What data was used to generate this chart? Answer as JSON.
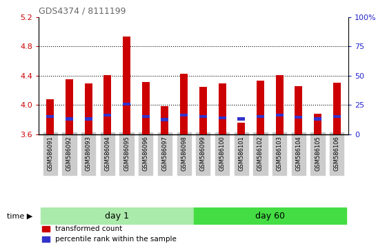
{
  "title": "GDS4374 / 8111199",
  "samples": [
    "GSM586091",
    "GSM586092",
    "GSM586093",
    "GSM586094",
    "GSM586095",
    "GSM586096",
    "GSM586097",
    "GSM586098",
    "GSM586099",
    "GSM586100",
    "GSM586101",
    "GSM586102",
    "GSM586103",
    "GSM586104",
    "GSM586105",
    "GSM586106"
  ],
  "red_tops": [
    4.08,
    4.35,
    4.29,
    4.41,
    4.93,
    4.31,
    3.98,
    4.43,
    4.25,
    4.29,
    3.76,
    4.33,
    4.41,
    4.26,
    3.88,
    4.3
  ],
  "blue_positions": [
    3.82,
    3.79,
    3.79,
    3.84,
    3.99,
    3.82,
    3.78,
    3.84,
    3.82,
    3.8,
    3.79,
    3.82,
    3.84,
    3.81,
    3.79,
    3.82
  ],
  "blue_heights": [
    0.04,
    0.04,
    0.04,
    0.04,
    0.04,
    0.04,
    0.04,
    0.04,
    0.04,
    0.04,
    0.04,
    0.04,
    0.04,
    0.04,
    0.04,
    0.04
  ],
  "ylim": [
    3.6,
    5.2
  ],
  "yticks_left": [
    3.6,
    4.0,
    4.4,
    4.8,
    5.2
  ],
  "yticks_right": [
    0,
    25,
    50,
    75,
    100
  ],
  "ytick_labels_right": [
    "0",
    "25",
    "50",
    "75",
    "100%"
  ],
  "base_value": 3.6,
  "day1_samples": 8,
  "day60_samples": 8,
  "day1_label": "day 1",
  "day60_label": "day 60",
  "time_label": "time",
  "legend_red": "transformed count",
  "legend_blue": "percentile rank within the sample",
  "bar_color_red": "#cc0000",
  "bar_color_blue": "#3333cc",
  "background_plot": "#ffffff",
  "background_tick_label": "#cccccc",
  "day1_color": "#aaeaaa",
  "day60_color": "#44dd44",
  "grid_color": "#000000",
  "title_color": "#666666",
  "left_tick_color": "#cc0000",
  "right_tick_color": "#2222cc",
  "bar_width": 0.4
}
